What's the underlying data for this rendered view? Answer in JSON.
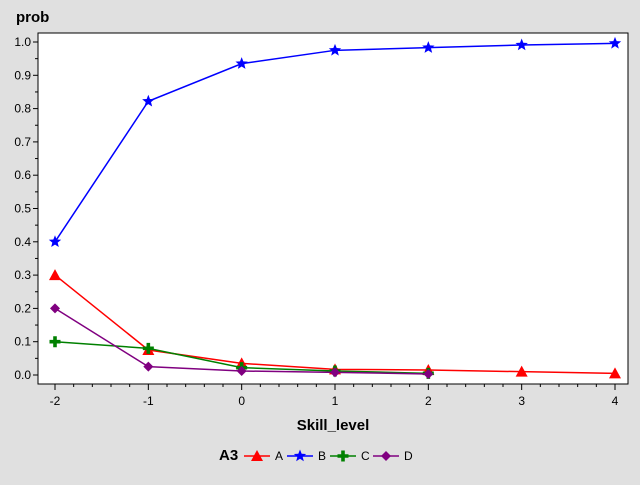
{
  "chart_data": {
    "type": "line",
    "xlabel": "Skill_level",
    "ylabel": "prob",
    "x": [
      -2,
      -1,
      0,
      1,
      2,
      3,
      4
    ],
    "xlim": [
      -2,
      4
    ],
    "ylim": [
      0,
      1
    ],
    "xticks": [
      "-2",
      "-1",
      "0",
      "1",
      "2",
      "3",
      "4"
    ],
    "yticks": [
      "0.0",
      "0.1",
      "0.2",
      "0.3",
      "0.4",
      "0.5",
      "0.6",
      "0.7",
      "0.8",
      "0.9",
      "1.0"
    ],
    "grid": false,
    "legend": {
      "title": "A3",
      "position": "bottom"
    },
    "series": [
      {
        "name": "A",
        "color": "#ff0000",
        "marker": "triangle",
        "points": [
          [
            -2,
            0.3
          ],
          [
            -1,
            0.075
          ],
          [
            0,
            0.035
          ],
          [
            1,
            0.017
          ],
          [
            2,
            0.015
          ],
          [
            3,
            0.01
          ],
          [
            4,
            0.005
          ]
        ]
      },
      {
        "name": "B",
        "color": "#0000ff",
        "marker": "star",
        "points": [
          [
            -2,
            0.4
          ],
          [
            -1,
            0.822
          ],
          [
            0,
            0.935
          ],
          [
            1,
            0.975
          ],
          [
            2,
            0.983
          ],
          [
            3,
            0.991
          ],
          [
            4,
            0.996
          ]
        ]
      },
      {
        "name": "C",
        "color": "#008000",
        "marker": "plus",
        "points": [
          [
            -2,
            0.1
          ],
          [
            -1,
            0.08
          ],
          [
            0,
            0.022
          ],
          [
            1,
            0.012
          ],
          [
            2,
            0.005
          ]
        ]
      },
      {
        "name": "D",
        "color": "#800080",
        "marker": "diamond",
        "points": [
          [
            -2,
            0.2
          ],
          [
            -1,
            0.025
          ],
          [
            0,
            0.012
          ],
          [
            1,
            0.008
          ],
          [
            2,
            0.003
          ]
        ]
      }
    ]
  }
}
